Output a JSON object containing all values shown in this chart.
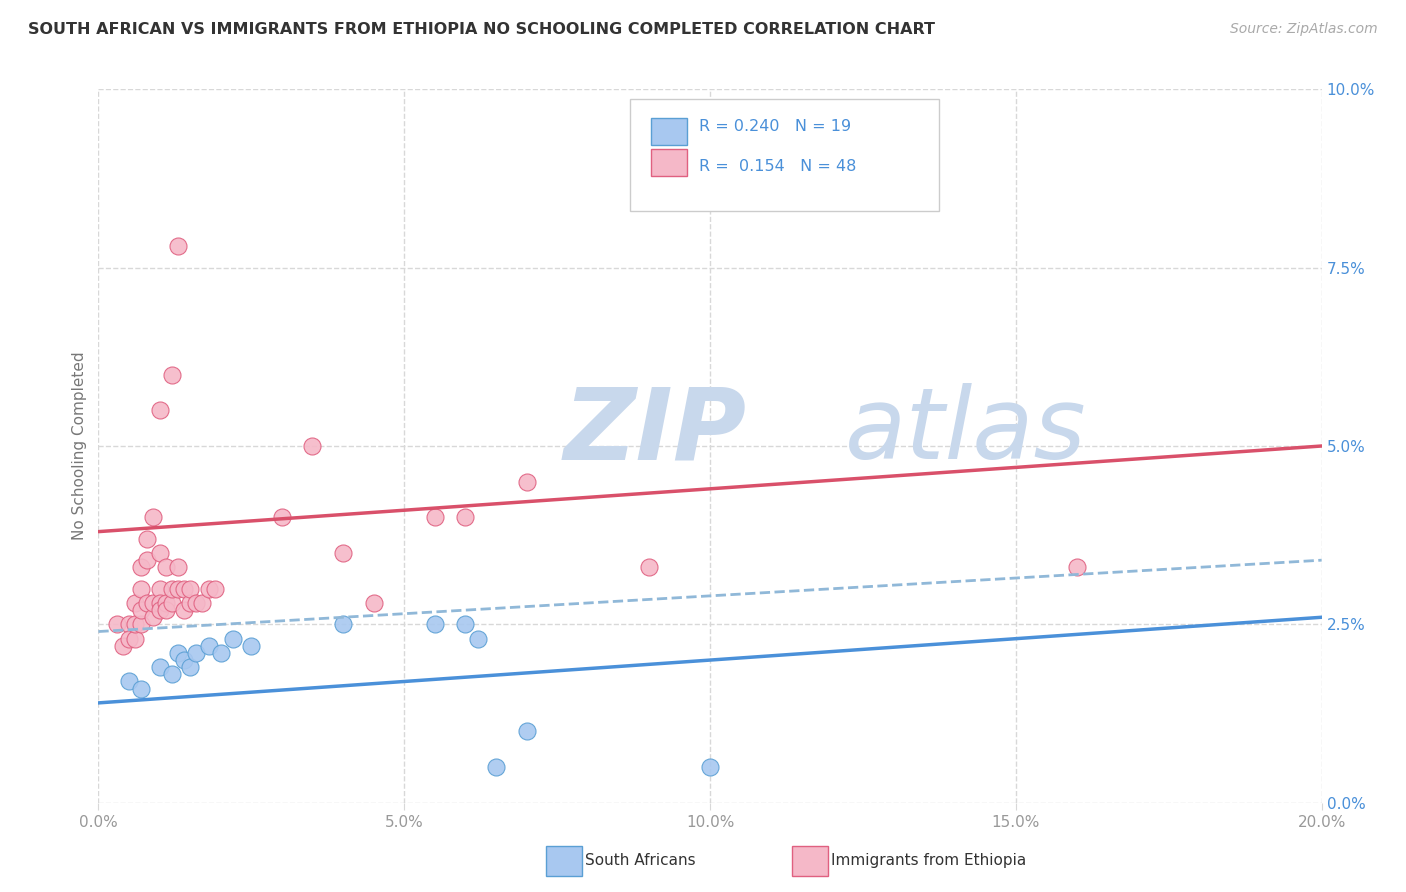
{
  "title": "SOUTH AFRICAN VS IMMIGRANTS FROM ETHIOPIA NO SCHOOLING COMPLETED CORRELATION CHART",
  "source": "Source: ZipAtlas.com",
  "ylabel": "No Schooling Completed",
  "legend_blue_R": "0.240",
  "legend_blue_N": "19",
  "legend_pink_R": "0.154",
  "legend_pink_N": "48",
  "legend_label_blue": "South Africans",
  "legend_label_pink": "Immigrants from Ethiopia",
  "blue_dot_color": "#a8c8f0",
  "blue_dot_edge": "#5a9fd4",
  "pink_dot_color": "#f5b8c8",
  "pink_dot_edge": "#e06080",
  "trendline_blue_color": "#4a90d9",
  "trendline_pink_color": "#d9506a",
  "trendline_dashed_color": "#90b8d8",
  "watermark_zip_color": "#c8d8ec",
  "watermark_atlas_color": "#c8d8ec",
  "blue_dots": [
    [
      0.005,
      0.017
    ],
    [
      0.007,
      0.016
    ],
    [
      0.01,
      0.019
    ],
    [
      0.012,
      0.018
    ],
    [
      0.013,
      0.021
    ],
    [
      0.014,
      0.02
    ],
    [
      0.015,
      0.019
    ],
    [
      0.016,
      0.021
    ],
    [
      0.018,
      0.022
    ],
    [
      0.02,
      0.021
    ],
    [
      0.022,
      0.023
    ],
    [
      0.025,
      0.022
    ],
    [
      0.04,
      0.025
    ],
    [
      0.055,
      0.025
    ],
    [
      0.06,
      0.025
    ],
    [
      0.062,
      0.023
    ],
    [
      0.065,
      0.005
    ],
    [
      0.07,
      0.01
    ],
    [
      0.1,
      0.005
    ]
  ],
  "pink_dots": [
    [
      0.003,
      0.025
    ],
    [
      0.004,
      0.022
    ],
    [
      0.005,
      0.025
    ],
    [
      0.005,
      0.023
    ],
    [
      0.006,
      0.023
    ],
    [
      0.006,
      0.025
    ],
    [
      0.006,
      0.028
    ],
    [
      0.007,
      0.025
    ],
    [
      0.007,
      0.027
    ],
    [
      0.007,
      0.03
    ],
    [
      0.007,
      0.033
    ],
    [
      0.008,
      0.034
    ],
    [
      0.008,
      0.037
    ],
    [
      0.008,
      0.028
    ],
    [
      0.009,
      0.026
    ],
    [
      0.009,
      0.028
    ],
    [
      0.009,
      0.04
    ],
    [
      0.01,
      0.035
    ],
    [
      0.01,
      0.03
    ],
    [
      0.01,
      0.028
    ],
    [
      0.01,
      0.027
    ],
    [
      0.01,
      0.055
    ],
    [
      0.011,
      0.033
    ],
    [
      0.011,
      0.028
    ],
    [
      0.011,
      0.027
    ],
    [
      0.012,
      0.028
    ],
    [
      0.012,
      0.03
    ],
    [
      0.012,
      0.06
    ],
    [
      0.013,
      0.078
    ],
    [
      0.013,
      0.03
    ],
    [
      0.013,
      0.033
    ],
    [
      0.014,
      0.027
    ],
    [
      0.014,
      0.03
    ],
    [
      0.015,
      0.028
    ],
    [
      0.015,
      0.03
    ],
    [
      0.016,
      0.028
    ],
    [
      0.017,
      0.028
    ],
    [
      0.018,
      0.03
    ],
    [
      0.019,
      0.03
    ],
    [
      0.03,
      0.04
    ],
    [
      0.035,
      0.05
    ],
    [
      0.04,
      0.035
    ],
    [
      0.045,
      0.028
    ],
    [
      0.055,
      0.04
    ],
    [
      0.06,
      0.04
    ],
    [
      0.07,
      0.045
    ],
    [
      0.09,
      0.033
    ],
    [
      0.16,
      0.033
    ]
  ],
  "xlim": [
    0.0,
    0.2
  ],
  "ylim": [
    0.0,
    0.1
  ],
  "pink_trend": [
    0.0,
    0.038,
    0.2,
    0.05
  ],
  "blue_trend": [
    0.0,
    0.014,
    0.2,
    0.026
  ],
  "dashed_trend": [
    0.0,
    0.024,
    0.2,
    0.034
  ],
  "xtick_positions": [
    0.0,
    0.05,
    0.1,
    0.15,
    0.2
  ],
  "xtick_labels": [
    "0.0%",
    "5.0%",
    "10.0%",
    "15.0%",
    "20.0%"
  ],
  "ytick_positions": [
    0.0,
    0.025,
    0.05,
    0.075,
    0.1
  ],
  "ytick_labels": [
    "0.0%",
    "2.5%",
    "5.0%",
    "7.5%",
    "10.0%"
  ],
  "background_color": "#ffffff",
  "grid_color": "#d8d8d8",
  "axis_label_color": "#999999",
  "right_tick_color": "#4a90d9"
}
